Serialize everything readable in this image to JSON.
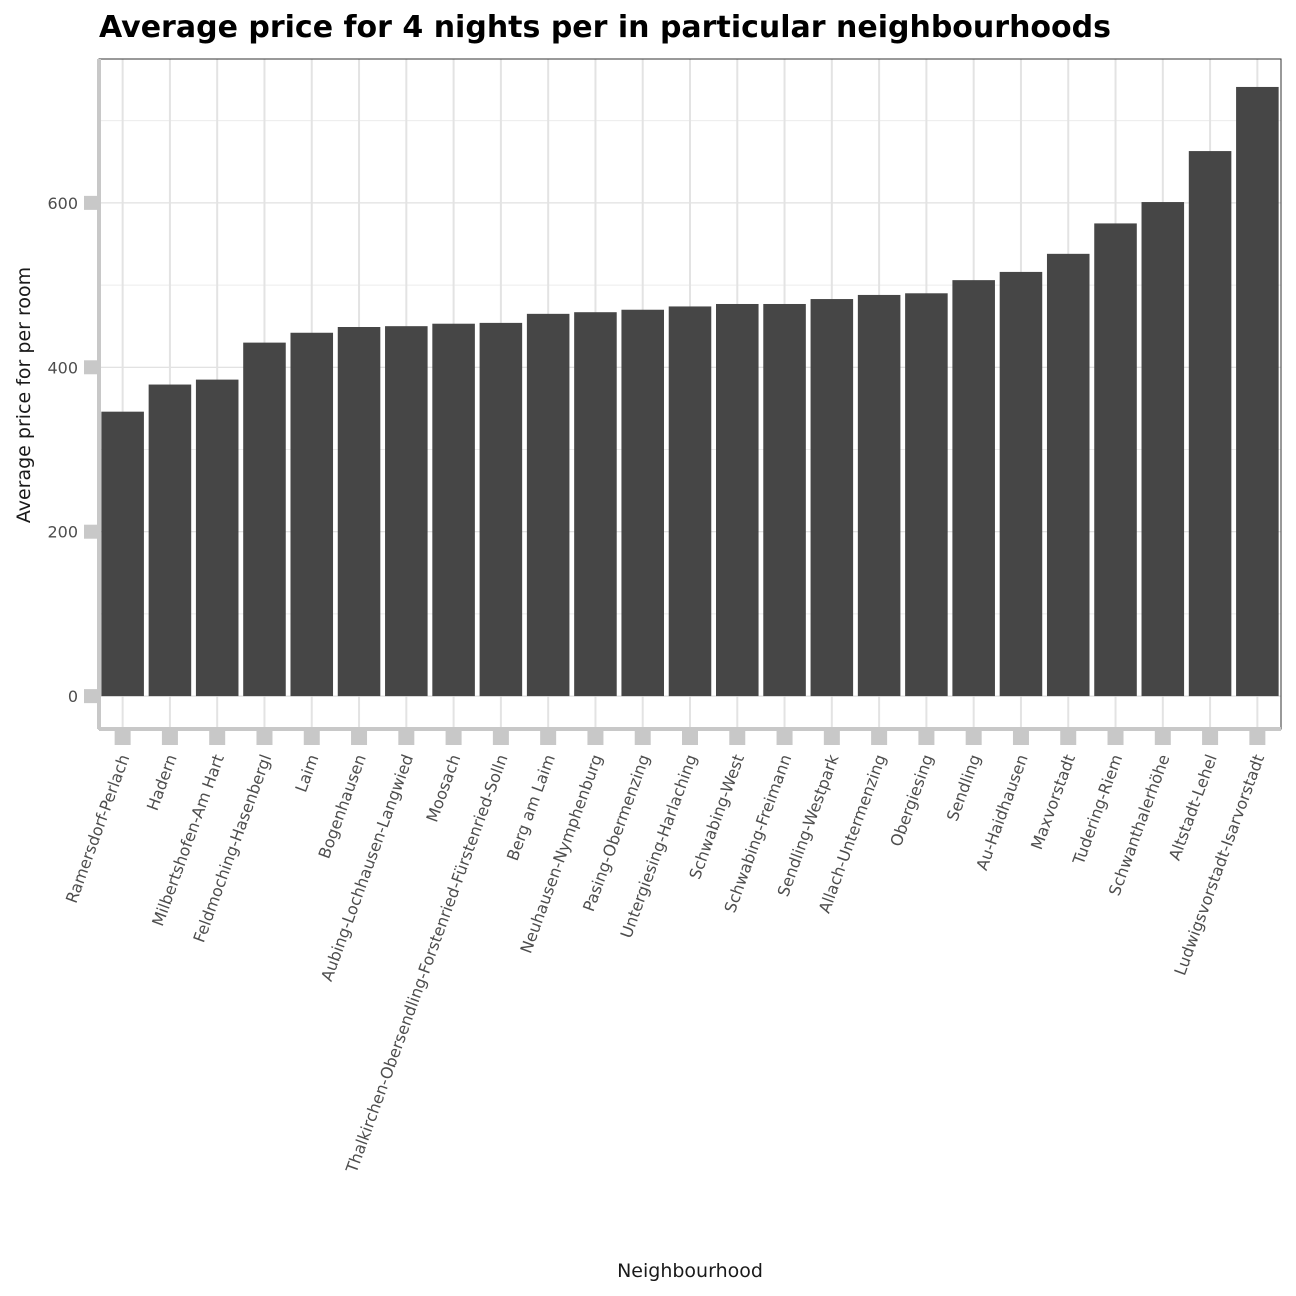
{
  "chart_data": {
    "type": "bar",
    "title": "Average price for 4 nights per in particular neighbourhoods",
    "xlabel": "Neighbourhood",
    "ylabel": "Average price for per room",
    "ylim": [
      -40,
      775
    ],
    "yticks": [
      0,
      200,
      400,
      600
    ],
    "grid": true,
    "bar_color": "#464646",
    "categories": [
      "Ramersdorf-Perlach",
      "Hadern",
      "Milbertshofen-Am Hart",
      "Feldmoching-Hasenbergl",
      "Laim",
      "Bogenhausen",
      "Aubing-Lochhausen-Langwied",
      "Moosach",
      "Thalkirchen-Obersendling-Forstenried-Fürstenried-Solln",
      "Berg am Laim",
      "Neuhausen-Nymphenburg",
      "Pasing-Obermenzing",
      "Untergiesing-Harlaching",
      "Schwabing-West",
      "Schwabing-Freimann",
      "Sendling-Westpark",
      "Allach-Untermenzing",
      "Obergiesing",
      "Sendling",
      "Au-Haidhausen",
      "Maxvorstadt",
      "Tudering-Riem",
      "Schwanthalerhöhe",
      "Altstadt-Lehel",
      "Ludwigsvorstadt-Isarvorstadt"
    ],
    "values": [
      346,
      379,
      385,
      430,
      442,
      449,
      450,
      453,
      454,
      465,
      467,
      470,
      474,
      477,
      477,
      483,
      488,
      490,
      506,
      516,
      538,
      575,
      601,
      663,
      741
    ]
  }
}
